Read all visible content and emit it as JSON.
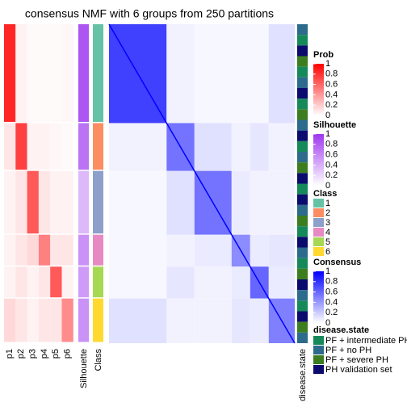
{
  "chart_data": {
    "type": "consensus_heatmap",
    "title": "consensus NMF with 6 groups from 250 partitions",
    "classes": [
      {
        "name": "1",
        "color": "#66C2A5",
        "size": 62
      },
      {
        "name": "2",
        "color": "#FC8D62",
        "size": 30
      },
      {
        "name": "3",
        "color": "#8DA0CB",
        "size": 40
      },
      {
        "name": "4",
        "color": "#E78AC3",
        "size": 20
      },
      {
        "name": "5",
        "color": "#A6D854",
        "size": 20
      },
      {
        "name": "6",
        "color": "#FFD92F",
        "size": 28
      }
    ],
    "prob_columns": [
      "p1",
      "p2",
      "p3",
      "p4",
      "p5",
      "p6"
    ],
    "prob_values": [
      [
        0.85,
        0.05,
        0.02,
        0.02,
        0.02,
        0.03
      ],
      [
        0.1,
        0.75,
        0.05,
        0.05,
        0.03,
        0.02
      ],
      [
        0.05,
        0.1,
        0.65,
        0.1,
        0.05,
        0.05
      ],
      [
        0.05,
        0.1,
        0.15,
        0.5,
        0.1,
        0.1
      ],
      [
        0.05,
        0.1,
        0.05,
        0.1,
        0.65,
        0.05
      ],
      [
        0.15,
        0.1,
        0.05,
        0.1,
        0.1,
        0.45
      ]
    ],
    "silhouette_label": "Silhouette",
    "silhouette_values": [
      0.85,
      0.7,
      0.35,
      0.55,
      0.5,
      0.55
    ],
    "class_label": "Class",
    "consensus_values": [
      [
        0.75,
        0.05,
        0.03,
        0.03,
        0.03,
        0.12
      ],
      [
        0.05,
        0.55,
        0.12,
        0.05,
        0.1,
        0.05
      ],
      [
        0.03,
        0.12,
        0.55,
        0.08,
        0.05,
        0.05
      ],
      [
        0.03,
        0.05,
        0.08,
        0.45,
        0.08,
        0.1
      ],
      [
        0.03,
        0.1,
        0.05,
        0.08,
        0.6,
        0.08
      ],
      [
        0.12,
        0.05,
        0.05,
        0.1,
        0.08,
        0.5
      ]
    ],
    "disease_state_label": "disease.state",
    "disease_states": [
      {
        "name": "PF + intermediate PH",
        "color": "#16895A"
      },
      {
        "name": "PF + no PH",
        "color": "#2C6B8C"
      },
      {
        "name": "PF + severe PH",
        "color": "#3C7E1F"
      },
      {
        "name": "PH validation set",
        "color": "#0B0B6E"
      }
    ],
    "disease_state_column": [
      1,
      0,
      3,
      2,
      0,
      1,
      3,
      0,
      2,
      1,
      3,
      0,
      1,
      2,
      3,
      0,
      3,
      1,
      2,
      0,
      3,
      1,
      0,
      2,
      3,
      1,
      0,
      3,
      2,
      1
    ],
    "legends": [
      {
        "title": "Prob",
        "color": "#FF0000",
        "ticks": [
          1,
          0.8,
          0.6,
          0.4,
          0.2,
          0
        ]
      },
      {
        "title": "Silhouette",
        "color": "#9E37F0",
        "ticks": [
          1,
          0.8,
          0.6,
          0.4,
          0.2,
          0
        ]
      },
      {
        "title": "Consensus",
        "color": "#0000FF",
        "ticks": [
          1,
          0.8,
          0.6,
          0.4,
          0.2,
          0
        ]
      }
    ],
    "class_legend_title": "Class",
    "disease_legend_title": "disease.state"
  }
}
